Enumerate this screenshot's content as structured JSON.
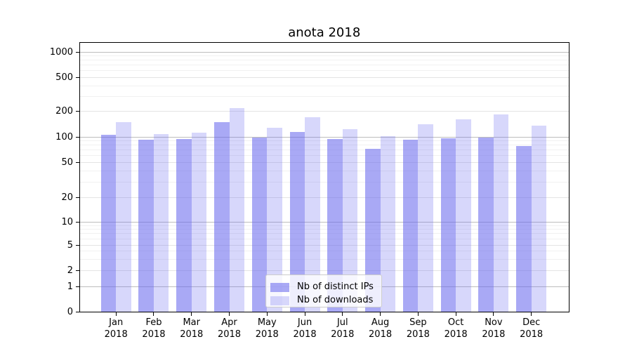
{
  "figure": {
    "title": "anota 2018"
  },
  "legend": {
    "items": [
      {
        "label": "Nb of distinct IPs"
      },
      {
        "label": "Nb of downloads"
      }
    ]
  },
  "colors": {
    "bar_distinct_ips": "rgba(102,102,238,0.56)",
    "bar_downloads": "rgba(102,102,238,0.26)",
    "grid_decade": "#bdbdbd",
    "grid_major": "#e4e4e4",
    "grid_minor": "#f1f1f1",
    "spine": "#000000"
  },
  "chart_data": {
    "type": "bar",
    "title": "anota 2018",
    "categories": [
      "Jan 2018",
      "Feb 2018",
      "Mar 2018",
      "Apr 2018",
      "May 2018",
      "Jun 2018",
      "Jul 2018",
      "Aug 2018",
      "Sep 2018",
      "Oct 2018",
      "Nov 2018",
      "Dec 2018"
    ],
    "months": [
      "Jan",
      "Feb",
      "Mar",
      "Apr",
      "May",
      "Jun",
      "Jul",
      "Aug",
      "Sep",
      "Oct",
      "Nov",
      "Dec"
    ],
    "year": "2018",
    "series": [
      {
        "name": "Nb of distinct IPs",
        "color": "rgba(102,102,238,0.56)",
        "values": [
          105,
          92,
          95,
          148,
          99,
          115,
          94,
          72,
          92,
          97,
          99,
          78
        ]
      },
      {
        "name": "Nb of downloads",
        "color": "rgba(102,102,238,0.26)",
        "values": [
          150,
          107,
          112,
          220,
          129,
          172,
          123,
          102,
          140,
          161,
          183,
          137
        ]
      }
    ],
    "xlabel": "",
    "ylabel": "",
    "yscale": "symlog",
    "y_ticks": [
      0,
      1,
      2,
      5,
      10,
      20,
      50,
      100,
      200,
      500,
      1000
    ],
    "y_minor_ticks": [
      3,
      4,
      6,
      7,
      8,
      9,
      30,
      40,
      60,
      70,
      80,
      90,
      300,
      400,
      600,
      700,
      800,
      900
    ],
    "ylim": [
      0,
      1300
    ],
    "grid": true,
    "legend_position": "inside lower center"
  }
}
